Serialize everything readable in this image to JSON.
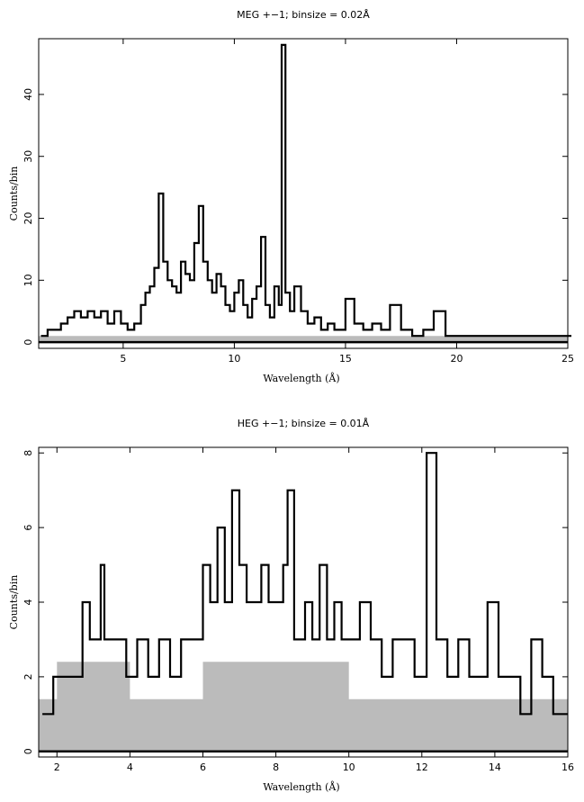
{
  "chart_data": [
    {
      "type": "line",
      "title": "MEG +−1; binsize = 0.02Å",
      "xlabel": "Wavelength (Å)",
      "ylabel": "Counts/bin",
      "xlim": [
        1.2,
        25
      ],
      "ylim": [
        -1,
        49
      ],
      "xticks": [
        5,
        10,
        15,
        20,
        25
      ],
      "yticks": [
        0,
        10,
        20,
        30,
        40
      ],
      "grid": false,
      "series": [
        {
          "role": "counts",
          "color": "#000000",
          "x": [
            1.3,
            1.6,
            1.9,
            2.2,
            2.5,
            2.8,
            3.1,
            3.4,
            3.7,
            4.0,
            4.3,
            4.6,
            4.9,
            5.2,
            5.5,
            5.8,
            6.0,
            6.2,
            6.4,
            6.6,
            6.8,
            7.0,
            7.2,
            7.4,
            7.6,
            7.8,
            8.0,
            8.2,
            8.4,
            8.6,
            8.8,
            9.0,
            9.2,
            9.4,
            9.6,
            9.8,
            10.0,
            10.2,
            10.4,
            10.6,
            10.8,
            11.0,
            11.2,
            11.4,
            11.6,
            11.8,
            12.0,
            12.13,
            12.3,
            12.5,
            12.7,
            13.0,
            13.3,
            13.6,
            13.9,
            14.2,
            14.5,
            14.8,
            15.0,
            15.4,
            15.8,
            16.2,
            16.6,
            17.0,
            17.5,
            18.0,
            18.5,
            18.97,
            19.5,
            20.0,
            21.0,
            22.0,
            23.0,
            24.0,
            25.0
          ],
          "y": [
            1,
            2,
            2,
            3,
            4,
            5,
            4,
            5,
            4,
            5,
            3,
            5,
            3,
            2,
            3,
            6,
            8,
            9,
            12,
            24,
            13,
            10,
            9,
            8,
            13,
            11,
            10,
            16,
            22,
            13,
            10,
            8,
            11,
            9,
            6,
            5,
            8,
            10,
            6,
            4,
            7,
            9,
            17,
            6,
            4,
            9,
            6,
            48,
            8,
            5,
            9,
            5,
            3,
            4,
            2,
            3,
            2,
            2,
            7,
            3,
            2,
            3,
            2,
            6,
            2,
            1,
            2,
            5,
            1,
            1,
            1,
            1,
            1,
            1,
            1
          ]
        },
        {
          "role": "background",
          "color": "#bbbbbb",
          "x": [
            1.2,
            25
          ],
          "y": [
            1,
            1
          ]
        }
      ]
    },
    {
      "type": "line",
      "title": "HEG +−1; binsize = 0.01Å",
      "xlabel": "Wavelength (Å)",
      "ylabel": "Counts/bin",
      "xlim": [
        1.5,
        16
      ],
      "ylim": [
        -0.15,
        8.15
      ],
      "xticks": [
        2,
        4,
        6,
        8,
        10,
        12,
        14,
        16
      ],
      "yticks": [
        0,
        2,
        4,
        6,
        8
      ],
      "grid": false,
      "series": [
        {
          "role": "counts",
          "color": "#000000",
          "x": [
            1.6,
            1.9,
            2.2,
            2.5,
            2.7,
            2.9,
            3.2,
            3.3,
            3.6,
            3.9,
            4.2,
            4.5,
            4.8,
            5.1,
            5.4,
            5.7,
            6.0,
            6.2,
            6.4,
            6.6,
            6.8,
            7.0,
            7.2,
            7.4,
            7.6,
            7.8,
            8.0,
            8.2,
            8.32,
            8.5,
            8.8,
            9.0,
            9.2,
            9.4,
            9.6,
            9.8,
            10.0,
            10.3,
            10.6,
            10.9,
            11.2,
            11.5,
            11.8,
            12.13,
            12.4,
            12.7,
            13.0,
            13.3,
            13.6,
            13.8,
            14.1,
            14.4,
            14.7,
            15.0,
            15.3,
            15.6,
            15.9
          ],
          "y": [
            1,
            2,
            2,
            2,
            4,
            3,
            5,
            3,
            3,
            2,
            3,
            2,
            3,
            2,
            3,
            3,
            5,
            4,
            6,
            4,
            7,
            5,
            4,
            4,
            5,
            4,
            4,
            5,
            7,
            3,
            4,
            3,
            5,
            3,
            4,
            3,
            3,
            4,
            3,
            2,
            3,
            3,
            2,
            8,
            3,
            2,
            3,
            2,
            2,
            4,
            2,
            2,
            1,
            3,
            2,
            1,
            1
          ]
        },
        {
          "role": "background",
          "color": "#bbbbbb",
          "x": [
            1.5,
            2.0,
            4.0,
            6.0,
            8.0,
            10.0,
            12.0,
            16.0
          ],
          "y": [
            1.4,
            2.4,
            1.4,
            2.4,
            2.4,
            1.4,
            1.4,
            1.4
          ]
        }
      ]
    }
  ]
}
